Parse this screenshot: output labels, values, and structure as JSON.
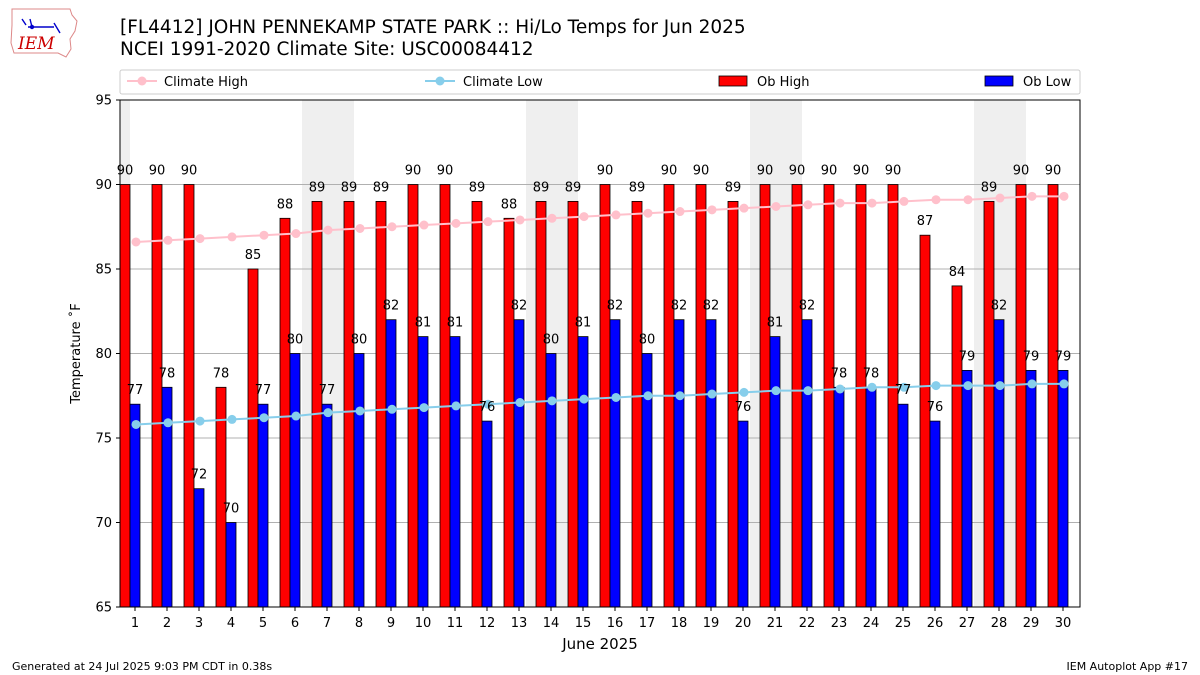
{
  "header": {
    "title": "[FL4412] JOHN PENNEKAMP STATE PARK :: Hi/Lo Temps for Jun 2025",
    "subtitle": "NCEI 1991-2020 Climate Site: USC00084412"
  },
  "logo": {
    "text": "IEM",
    "icon": "iowa-state-map-weather-logo",
    "color": "#cc0000"
  },
  "footer": {
    "left": "Generated at 24 Jul 2025 9:03 PM CDT in 0.38s",
    "right": "IEM Autoplot App #17"
  },
  "chart_data": {
    "type": "bar",
    "xlabel": "June 2025",
    "ylabel": "Temperature ˚F",
    "ylim": [
      65,
      95
    ],
    "yticks": [
      65,
      70,
      75,
      80,
      85,
      90,
      95
    ],
    "grid": true,
    "legend_placement": "top",
    "categories": [
      "1",
      "2",
      "3",
      "4",
      "5",
      "6",
      "7",
      "8",
      "9",
      "10",
      "11",
      "12",
      "13",
      "14",
      "15",
      "16",
      "17",
      "18",
      "19",
      "20",
      "21",
      "22",
      "23",
      "24",
      "25",
      "26",
      "27",
      "28",
      "29",
      "30"
    ],
    "weekend_shading": [
      [
        1,
        1
      ],
      [
        7,
        8
      ],
      [
        14,
        15
      ],
      [
        21,
        22
      ],
      [
        28,
        29
      ]
    ],
    "shading_color": "#efefef",
    "series": [
      {
        "name": "Climate High",
        "kind": "line",
        "color": "#ffc0cb",
        "values": [
          86.6,
          86.7,
          86.8,
          86.9,
          87.0,
          87.1,
          87.3,
          87.4,
          87.5,
          87.6,
          87.7,
          87.8,
          87.9,
          88.0,
          88.1,
          88.2,
          88.3,
          88.4,
          88.5,
          88.6,
          88.7,
          88.8,
          88.9,
          88.9,
          89.0,
          89.1,
          89.1,
          89.2,
          89.3,
          89.3
        ]
      },
      {
        "name": "Climate Low",
        "kind": "line",
        "color": "#87ceeb",
        "values": [
          75.8,
          75.9,
          76.0,
          76.1,
          76.2,
          76.3,
          76.5,
          76.6,
          76.7,
          76.8,
          76.9,
          77.0,
          77.1,
          77.2,
          77.3,
          77.4,
          77.5,
          77.5,
          77.6,
          77.7,
          77.8,
          77.8,
          77.9,
          78.0,
          78.0,
          78.1,
          78.1,
          78.1,
          78.2,
          78.2
        ]
      },
      {
        "name": "Ob High",
        "kind": "bar",
        "color": "#ff0000",
        "values": [
          90,
          90,
          90,
          78,
          85,
          88,
          89,
          89,
          89,
          90,
          90,
          89,
          88,
          89,
          89,
          90,
          89,
          90,
          90,
          89,
          90,
          90,
          90,
          90,
          90,
          87,
          84,
          89,
          90,
          90
        ]
      },
      {
        "name": "Ob Low",
        "kind": "bar",
        "color": "#0000ff",
        "values": [
          77,
          78,
          72,
          70,
          77,
          80,
          77,
          80,
          82,
          81,
          81,
          76,
          82,
          80,
          81,
          82,
          80,
          82,
          82,
          76,
          81,
          82,
          78,
          78,
          77,
          76,
          79,
          82,
          79,
          79
        ]
      }
    ]
  }
}
